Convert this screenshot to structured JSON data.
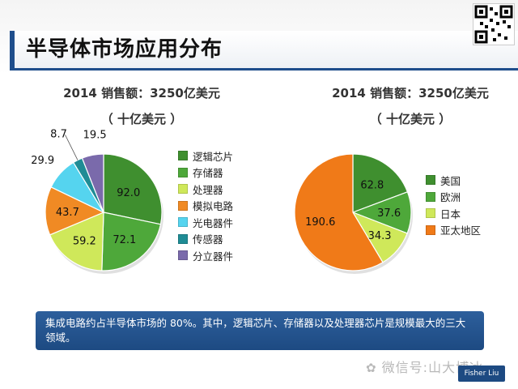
{
  "page_title": "半导体市场应用分布",
  "callout_text": "集成电路约占半导体市场的 80%。其中，逻辑芯片、存储器以及处理器芯片是规模最大的三大领域。",
  "watermark_text": "微信号:山大博冰",
  "watermark_badge": "Fisher Liu",
  "chart_data": [
    {
      "type": "pie",
      "title": "2014 销售额：3250亿美元",
      "subtitle": "（ 十亿美元 ）",
      "legend_position": "right",
      "slices": [
        {
          "label": "逻辑芯片",
          "value": 92.0,
          "display": "92.0",
          "color": "#3f8f2f"
        },
        {
          "label": "存储器",
          "value": 72.1,
          "display": "72.1",
          "color": "#4ea83a"
        },
        {
          "label": "处理器",
          "value": 59.2,
          "display": "59.2",
          "color": "#cfe85a"
        },
        {
          "label": "模拟电路",
          "value": 43.7,
          "display": "43.7",
          "color": "#f08a24"
        },
        {
          "label": "光电器件",
          "value": 29.9,
          "display": "29.9",
          "color": "#55d4ef"
        },
        {
          "label": "传感器",
          "value": 8.7,
          "display": "8.7",
          "color": "#1f8c95"
        },
        {
          "label": "分立器件",
          "value": 19.5,
          "display": "19.5",
          "color": "#7a6aab"
        }
      ]
    },
    {
      "type": "pie",
      "title": "2014 销售额：3250亿美元",
      "subtitle": "（ 十亿美元 ）",
      "legend_position": "right",
      "slices": [
        {
          "label": "美国",
          "value": 62.8,
          "display": "62.8",
          "color": "#3f8f2f"
        },
        {
          "label": "欧洲",
          "value": 37.6,
          "display": "37.6",
          "color": "#4ea83a"
        },
        {
          "label": "日本",
          "value": 34.3,
          "display": "34.3",
          "color": "#cfe85a"
        },
        {
          "label": "亚太地区",
          "value": 190.6,
          "display": "190.6",
          "color": "#f07a18"
        }
      ]
    }
  ]
}
